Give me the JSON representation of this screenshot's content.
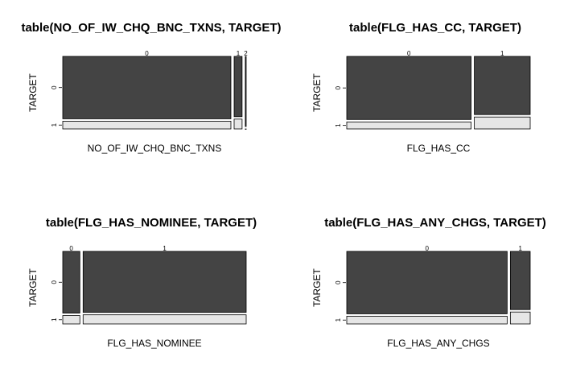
{
  "chart_data": [
    {
      "type": "mosaic",
      "title": "table(NO_OF_IW_CHQ_BNC_TXNS, TARGET)",
      "xlabel": "NO_OF_IW_CHQ_BNC_TXNS",
      "ylabel": "TARGET",
      "categories": [
        "0",
        "1",
        "2"
      ],
      "values": [
        95,
        4.5,
        0.5
      ],
      "series": [
        {
          "name": "0",
          "color": "#444444",
          "values": [
            89,
            86,
            100
          ]
        },
        {
          "name": "1",
          "color": "#e6e6e6",
          "values": [
            11,
            14,
            0
          ]
        }
      ]
    },
    {
      "type": "mosaic",
      "title": "table(FLG_HAS_CC, TARGET)",
      "xlabel": "FLG_HAS_CC",
      "ylabel": "TARGET",
      "categories": [
        "0",
        "1"
      ],
      "values": [
        69,
        31
      ],
      "series": [
        {
          "name": "0",
          "color": "#444444",
          "values": [
            90,
            83
          ]
        },
        {
          "name": "1",
          "color": "#e6e6e6",
          "values": [
            10,
            17
          ]
        }
      ]
    },
    {
      "type": "mosaic",
      "title": "table(FLG_HAS_NOMINEE, TARGET)",
      "xlabel": "FLG_HAS_NOMINEE",
      "ylabel": "TARGET",
      "categories": [
        "0",
        "1"
      ],
      "values": [
        9.5,
        90.5
      ],
      "series": [
        {
          "name": "0",
          "color": "#444444",
          "values": [
            88,
            87
          ]
        },
        {
          "name": "1",
          "color": "#e6e6e6",
          "values": [
            12,
            13
          ]
        }
      ]
    },
    {
      "type": "mosaic",
      "title": "table(FLG_HAS_ANY_CHGS, TARGET)",
      "xlabel": "FLG_HAS_ANY_CHGS",
      "ylabel": "TARGET",
      "categories": [
        "0",
        "1"
      ],
      "values": [
        89,
        11
      ],
      "series": [
        {
          "name": "0",
          "color": "#444444",
          "values": [
            89,
            83
          ]
        },
        {
          "name": "1",
          "color": "#e6e6e6",
          "values": [
            11,
            17
          ]
        }
      ]
    }
  ]
}
